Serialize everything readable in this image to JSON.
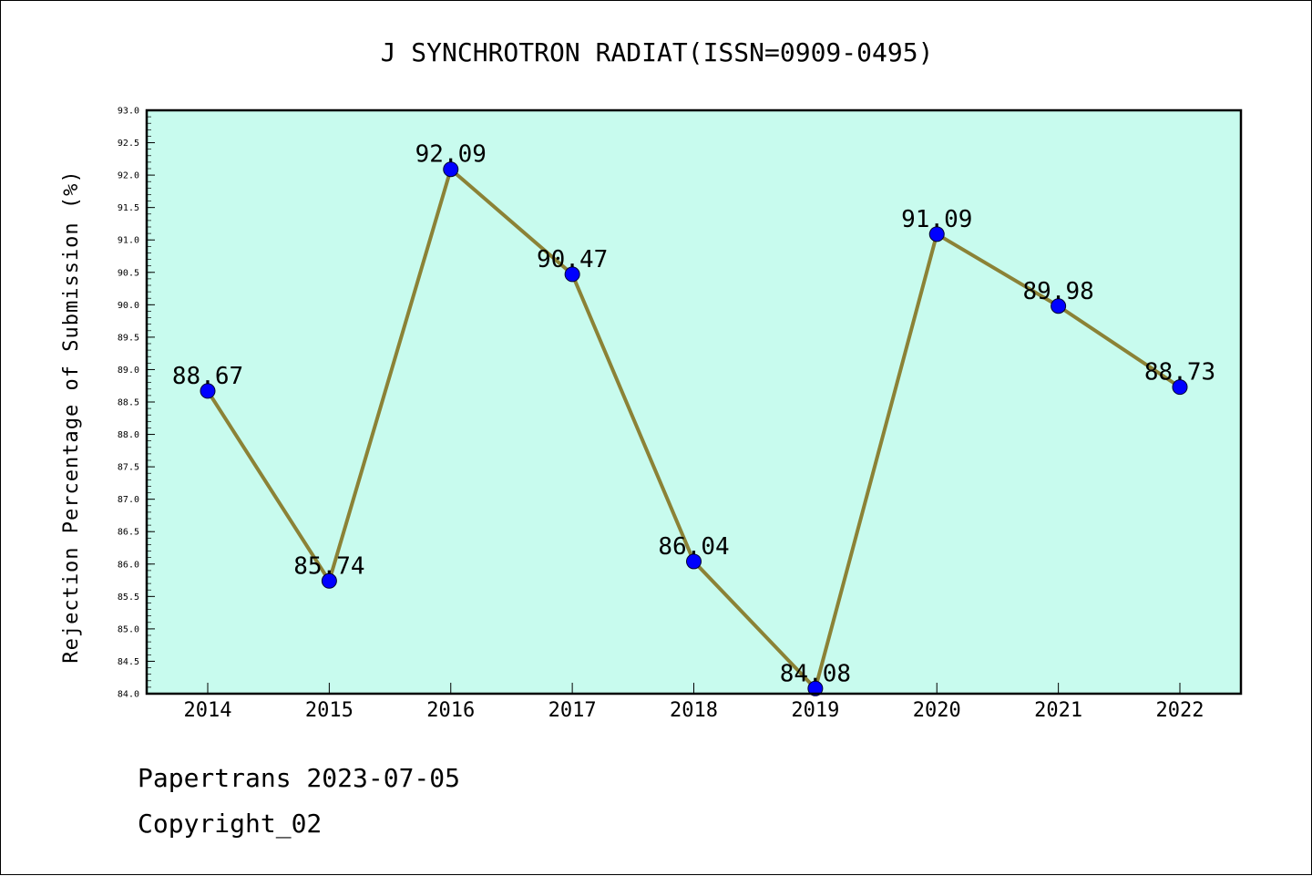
{
  "chart_data": {
    "type": "line",
    "title": "J SYNCHROTRON RADIAT(ISSN=0909-0495)",
    "xlabel": "",
    "ylabel": "Rejection Percentage of Submission (%)",
    "categories": [
      "2014",
      "2015",
      "2016",
      "2017",
      "2018",
      "2019",
      "2020",
      "2021",
      "2022"
    ],
    "series": [
      {
        "values": [
          88.67,
          85.74,
          92.09,
          90.47,
          86.04,
          84.08,
          91.09,
          89.98,
          88.73
        ],
        "data_labels": [
          "88.67",
          "85.74",
          "92.09",
          "90.47",
          "86.04",
          "84.08",
          "91.09",
          "89.98",
          "88.73"
        ]
      }
    ],
    "ylim": [
      84.0,
      93.0
    ],
    "yticks": [
      "84.0",
      "84.5",
      "85.0",
      "85.5",
      "86.0",
      "86.5",
      "87.0",
      "87.5",
      "88.0",
      "88.5",
      "89.0",
      "89.5",
      "90.0",
      "90.5",
      "91.0",
      "91.5",
      "92.0",
      "92.5",
      "93.0"
    ],
    "grid": false,
    "legend": "none",
    "colors": {
      "plot_background": "#c8fbee",
      "line": "#8b8236",
      "marker": "#0000ff"
    }
  },
  "footer": {
    "date_line": "Papertrans 2023-07-05",
    "copyright": "Copyright_02"
  }
}
